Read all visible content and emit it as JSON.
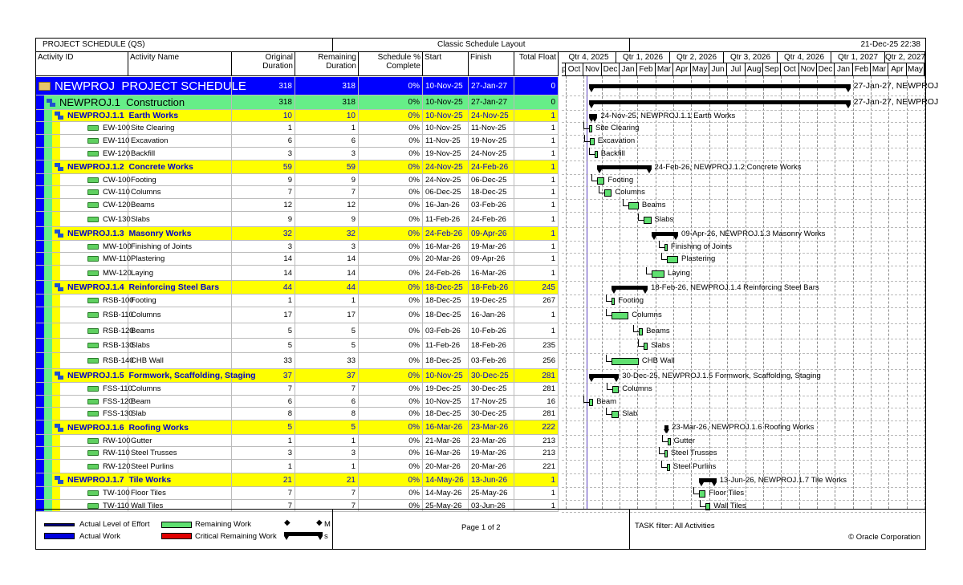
{
  "header": {
    "title": "PROJECT SCHEDULE (QS)",
    "layout": "Classic Schedule Layout",
    "datetime": "21-Dec-25 22:38"
  },
  "columns": [
    "Activity ID",
    "Activity Name",
    "Original Duration",
    "Remaining Duration",
    "Schedule % Complete",
    "Start",
    "Finish",
    "Total Float"
  ],
  "timescale": {
    "quarters": [
      "Qtr 4, 2025",
      "Qtr 1, 2026",
      "Qtr 2, 2026",
      "Qtr 3, 2026",
      "Qtr 4, 2026",
      "Qtr 1, 2027",
      "Qtr 2, 2027"
    ],
    "months": [
      "p",
      "Oct",
      "Nov",
      "Dec",
      "Jan",
      "Feb",
      "Mar",
      "Apr",
      "May",
      "Jun",
      "Jul",
      "Aug",
      "Sep",
      "Oct",
      "Nov",
      "Dec",
      "Jan",
      "Feb",
      "Mar",
      "Apr",
      "May",
      "n"
    ]
  },
  "rows": [
    {
      "type": "project",
      "id": "NEWPROJ",
      "name": "PROJECT SCHEDULE",
      "od": "318",
      "rd": "318",
      "pct": "0%",
      "start": "10-Nov-25",
      "finish": "27-Jan-27",
      "tf": "0",
      "label": "27-Jan-27, NEWPROJ"
    },
    {
      "type": "wbs1",
      "id": "NEWPROJ.1",
      "name": "Construction",
      "od": "318",
      "rd": "318",
      "pct": "0%",
      "start": "10-Nov-25",
      "finish": "27-Jan-27",
      "tf": "0",
      "label": "27-Jan-27, NEWPROJ"
    },
    {
      "type": "wbs",
      "id": "NEWPROJ.1.1",
      "name": "Earth Works",
      "od": "10",
      "rd": "10",
      "pct": "0%",
      "start": "10-Nov-25",
      "finish": "24-Nov-25",
      "tf": "1",
      "label": "24-Nov-25, NEWPROJ.1.1  Earth Works"
    },
    {
      "type": "act",
      "id": "EW-100",
      "name": "Site Clearing",
      "od": "1",
      "rd": "1",
      "pct": "0%",
      "start": "10-Nov-25",
      "finish": "11-Nov-25",
      "tf": "1",
      "label": "Site Clearing"
    },
    {
      "type": "act",
      "id": "EW-110",
      "name": "Excavation",
      "od": "6",
      "rd": "6",
      "pct": "0%",
      "start": "11-Nov-25",
      "finish": "19-Nov-25",
      "tf": "1",
      "label": "Excavation"
    },
    {
      "type": "act",
      "id": "EW-120",
      "name": "Backfill",
      "od": "3",
      "rd": "3",
      "pct": "0%",
      "start": "19-Nov-25",
      "finish": "24-Nov-25",
      "tf": "1",
      "label": "Backfill"
    },
    {
      "type": "wbs",
      "id": "NEWPROJ.1.2",
      "name": "Concrete Works",
      "od": "59",
      "rd": "59",
      "pct": "0%",
      "start": "24-Nov-25",
      "finish": "24-Feb-26",
      "tf": "1",
      "label": "24-Feb-26, NEWPROJ.1.2  Concrete Works"
    },
    {
      "type": "act",
      "id": "CW-100",
      "name": "Footing",
      "od": "9",
      "rd": "9",
      "pct": "0%",
      "start": "24-Nov-25",
      "finish": "06-Dec-25",
      "tf": "1",
      "label": "Footing"
    },
    {
      "type": "act",
      "id": "CW-110",
      "name": "Columns",
      "od": "7",
      "rd": "7",
      "pct": "0%",
      "start": "06-Dec-25",
      "finish": "18-Dec-25",
      "tf": "1",
      "label": "Columns"
    },
    {
      "type": "act",
      "id": "CW-120",
      "name": "Beams",
      "od": "12",
      "rd": "12",
      "pct": "0%",
      "start": "16-Jan-26",
      "finish": "03-Feb-26",
      "tf": "1",
      "label": "Beams"
    },
    {
      "type": "act",
      "id": "CW-130",
      "name": "Slabs",
      "od": "9",
      "rd": "9",
      "pct": "0%",
      "start": "11-Feb-26",
      "finish": "24-Feb-26",
      "tf": "1",
      "label": "Slabs"
    },
    {
      "type": "wbs",
      "id": "NEWPROJ.1.3",
      "name": "Masonry Works",
      "od": "32",
      "rd": "32",
      "pct": "0%",
      "start": "24-Feb-26",
      "finish": "09-Apr-26",
      "tf": "1",
      "label": "09-Apr-26, NEWPROJ.1.3  Masonry Works"
    },
    {
      "type": "act",
      "id": "MW-100",
      "name": "Finishing of Joints",
      "od": "3",
      "rd": "3",
      "pct": "0%",
      "start": "16-Mar-26",
      "finish": "19-Mar-26",
      "tf": "1",
      "label": "Finishing of Joints"
    },
    {
      "type": "act",
      "id": "MW-110",
      "name": "Plastering",
      "od": "14",
      "rd": "14",
      "pct": "0%",
      "start": "20-Mar-26",
      "finish": "09-Apr-26",
      "tf": "1",
      "label": "Plastering"
    },
    {
      "type": "act",
      "id": "MW-120",
      "name": "Laying",
      "od": "14",
      "rd": "14",
      "pct": "0%",
      "start": "24-Feb-26",
      "finish": "16-Mar-26",
      "tf": "1",
      "label": "Laying"
    },
    {
      "type": "wbs",
      "id": "NEWPROJ.1.4",
      "name": "Reinforcing Steel Bars",
      "od": "44",
      "rd": "44",
      "pct": "0%",
      "start": "18-Dec-25",
      "finish": "18-Feb-26",
      "tf": "245",
      "label": "18-Feb-26, NEWPROJ.1.4  Reinforcing Steel Bars"
    },
    {
      "type": "act",
      "id": "RSB-100",
      "name": "Footing",
      "od": "1",
      "rd": "1",
      "pct": "0%",
      "start": "18-Dec-25",
      "finish": "19-Dec-25",
      "tf": "267",
      "label": "Footing"
    },
    {
      "type": "act",
      "id": "RSB-110",
      "name": "Columns",
      "od": "17",
      "rd": "17",
      "pct": "0%",
      "start": "18-Dec-25",
      "finish": "16-Jan-26",
      "tf": "1",
      "label": "Columns"
    },
    {
      "type": "act",
      "id": "RSB-120",
      "name": "Beams",
      "od": "5",
      "rd": "5",
      "pct": "0%",
      "start": "03-Feb-26",
      "finish": "10-Feb-26",
      "tf": "1",
      "label": "Beams"
    },
    {
      "type": "act",
      "id": "RSB-130",
      "name": "Slabs",
      "od": "5",
      "rd": "5",
      "pct": "0%",
      "start": "11-Feb-26",
      "finish": "18-Feb-26",
      "tf": "235",
      "label": "Slabs"
    },
    {
      "type": "act",
      "id": "RSB-140",
      "name": "CHB Wall",
      "od": "33",
      "rd": "33",
      "pct": "0%",
      "start": "18-Dec-25",
      "finish": "03-Feb-26",
      "tf": "256",
      "label": "CHB Wall"
    },
    {
      "type": "wbs",
      "id": "NEWPROJ.1.5",
      "name": "Formwork, Scaffolding, Staging",
      "od": "37",
      "rd": "37",
      "pct": "0%",
      "start": "10-Nov-25",
      "finish": "30-Dec-25",
      "tf": "281",
      "label": "30-Dec-25, NEWPROJ.1.5  Formwork, Scaffolding, Staging"
    },
    {
      "type": "act",
      "id": "FSS-110",
      "name": "Columns",
      "od": "7",
      "rd": "7",
      "pct": "0%",
      "start": "19-Dec-25",
      "finish": "30-Dec-25",
      "tf": "281",
      "label": "Columns"
    },
    {
      "type": "act",
      "id": "FSS-120",
      "name": "Beam",
      "od": "6",
      "rd": "6",
      "pct": "0%",
      "start": "10-Nov-25",
      "finish": "17-Nov-25",
      "tf": "16",
      "label": "Beam"
    },
    {
      "type": "act",
      "id": "FSS-130",
      "name": "Slab",
      "od": "8",
      "rd": "8",
      "pct": "0%",
      "start": "18-Dec-25",
      "finish": "30-Dec-25",
      "tf": "281",
      "label": "Slab"
    },
    {
      "type": "wbs",
      "id": "NEWPROJ.1.6",
      "name": "Roofing Works",
      "od": "5",
      "rd": "5",
      "pct": "0%",
      "start": "16-Mar-26",
      "finish": "23-Mar-26",
      "tf": "222",
      "label": "23-Mar-26, NEWPROJ.1.6  Roofing Works"
    },
    {
      "type": "act",
      "id": "RW-100",
      "name": "Gutter",
      "od": "1",
      "rd": "1",
      "pct": "0%",
      "start": "21-Mar-26",
      "finish": "23-Mar-26",
      "tf": "213",
      "label": "Gutter"
    },
    {
      "type": "act",
      "id": "RW-110",
      "name": "Steel Trusses",
      "od": "3",
      "rd": "3",
      "pct": "0%",
      "start": "16-Mar-26",
      "finish": "19-Mar-26",
      "tf": "213",
      "label": "Steel Trusses"
    },
    {
      "type": "act",
      "id": "RW-120",
      "name": "Steel Purlins",
      "od": "1",
      "rd": "1",
      "pct": "0%",
      "start": "20-Mar-26",
      "finish": "20-Mar-26",
      "tf": "221",
      "label": "Steel Purlins"
    },
    {
      "type": "wbs",
      "id": "NEWPROJ.1.7",
      "name": "Tile Works",
      "od": "21",
      "rd": "21",
      "pct": "0%",
      "start": "14-May-26",
      "finish": "13-Jun-26",
      "tf": "1",
      "label": "13-Jun-26, NEWPROJ.1.7  Tile Works"
    },
    {
      "type": "act",
      "id": "TW-100",
      "name": "Floor Tiles",
      "od": "7",
      "rd": "7",
      "pct": "0%",
      "start": "14-May-26",
      "finish": "25-May-26",
      "tf": "1",
      "label": "Floor Tiles"
    },
    {
      "type": "act",
      "id": "TW-110",
      "name": "Wall Tiles",
      "od": "7",
      "rd": "7",
      "pct": "0%",
      "start": "25-May-26",
      "finish": "03-Jun-26",
      "tf": "1",
      "label": "Wall Tiles"
    }
  ],
  "legend": {
    "items": [
      "Actual Level of Effort",
      "Actual Work",
      "Remaining Work",
      "Critical Remaining Work",
      "M",
      "s"
    ],
    "colors": {
      "actual_loe": "#00007a",
      "actual_work": "#0000dd",
      "remaining": "#5fe070",
      "critical": "#e00000"
    }
  },
  "footer": {
    "page": "Page 1 of 2",
    "filter": "TASK filter: All Activities",
    "copyright": "© Oracle Corporation"
  },
  "colors": {
    "project_bg": "#0000ff",
    "wbs1_bg": "#66ee88",
    "wbs_bg": "#ffff00",
    "wbs_text": "#0000cc"
  }
}
